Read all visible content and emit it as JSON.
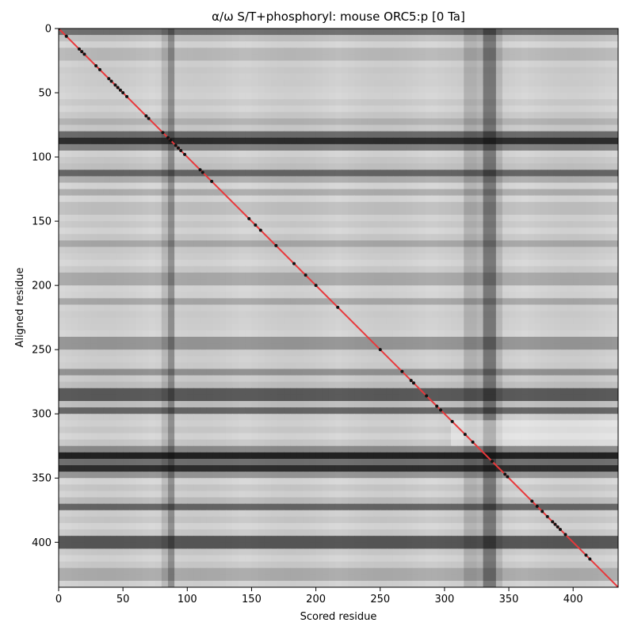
{
  "chart_data": {
    "type": "heatmap",
    "title": "α/ω S/T+phosphoryl: mouse ORC5:p [0 Ta]",
    "xlabel": "Scored residue",
    "ylabel": "Aligned residue",
    "xlim": [
      0,
      435
    ],
    "ylim": [
      435,
      0
    ],
    "x_ticks": [
      0,
      50,
      100,
      150,
      200,
      250,
      300,
      350,
      400
    ],
    "y_ticks": [
      0,
      50,
      100,
      150,
      200,
      250,
      300,
      350,
      400
    ],
    "colormap": "grayscale",
    "grid": false,
    "legend": "none",
    "colors": {
      "diagonal": "#e8383b",
      "points": "#111111"
    },
    "diagonal_line": {
      "from": [
        0,
        0
      ],
      "to": [
        435,
        435
      ]
    },
    "dark_rows": [
      {
        "center": 3,
        "width": 6,
        "strength": 0.55
      },
      {
        "center": 20,
        "width": 6,
        "strength": 0.3
      },
      {
        "center": 35,
        "width": 4,
        "strength": 0.25
      },
      {
        "center": 50,
        "width": 3,
        "strength": 0.2
      },
      {
        "center": 72,
        "width": 4,
        "strength": 0.25
      },
      {
        "center": 87,
        "width": 10,
        "strength": 0.85
      },
      {
        "center": 113,
        "width": 7,
        "strength": 0.6
      },
      {
        "center": 126,
        "width": 4,
        "strength": 0.35
      },
      {
        "center": 140,
        "width": 5,
        "strength": 0.3
      },
      {
        "center": 169,
        "width": 5,
        "strength": 0.35
      },
      {
        "center": 195,
        "width": 6,
        "strength": 0.4
      },
      {
        "center": 213,
        "width": 4,
        "strength": 0.3
      },
      {
        "center": 245,
        "width": 8,
        "strength": 0.45
      },
      {
        "center": 268,
        "width": 6,
        "strength": 0.4
      },
      {
        "center": 285,
        "width": 9,
        "strength": 0.75
      },
      {
        "center": 298,
        "width": 5,
        "strength": 0.6
      },
      {
        "center": 333,
        "width": 9,
        "strength": 0.9
      },
      {
        "center": 343,
        "width": 7,
        "strength": 0.85
      },
      {
        "center": 372,
        "width": 6,
        "strength": 0.6
      },
      {
        "center": 400,
        "width": 8,
        "strength": 0.8
      },
      {
        "center": 425,
        "width": 5,
        "strength": 0.45
      }
    ],
    "dark_columns": [
      {
        "center": 86,
        "width": 5,
        "strength": 0.45
      },
      {
        "center": 320,
        "width": 6,
        "strength": 0.3
      },
      {
        "center": 335,
        "width": 10,
        "strength": 0.55
      }
    ],
    "points": [
      [
        0,
        0
      ],
      [
        6,
        6
      ],
      [
        16,
        16
      ],
      [
        18,
        18
      ],
      [
        20,
        20
      ],
      [
        29,
        29
      ],
      [
        32,
        32
      ],
      [
        39,
        39
      ],
      [
        41,
        41
      ],
      [
        44,
        44
      ],
      [
        46,
        46
      ],
      [
        48,
        48
      ],
      [
        50,
        50
      ],
      [
        53,
        53
      ],
      [
        68,
        68
      ],
      [
        70,
        70
      ],
      [
        81,
        81
      ],
      [
        85,
        85
      ],
      [
        87,
        87
      ],
      [
        91,
        91
      ],
      [
        93,
        93
      ],
      [
        95,
        95
      ],
      [
        98,
        98
      ],
      [
        110,
        110
      ],
      [
        112,
        112
      ],
      [
        119,
        119
      ],
      [
        148,
        148
      ],
      [
        153,
        153
      ],
      [
        157,
        157
      ],
      [
        169,
        169
      ],
      [
        183,
        183
      ],
      [
        192,
        192
      ],
      [
        200,
        200
      ],
      [
        217,
        217
      ],
      [
        250,
        250
      ],
      [
        267,
        267
      ],
      [
        274,
        274
      ],
      [
        276,
        276
      ],
      [
        286,
        286
      ],
      [
        294,
        294
      ],
      [
        297,
        297
      ],
      [
        306,
        306
      ],
      [
        316,
        316
      ],
      [
        322,
        322
      ],
      [
        337,
        337
      ],
      [
        347,
        347
      ],
      [
        349,
        349
      ],
      [
        368,
        368
      ],
      [
        372,
        372
      ],
      [
        376,
        376
      ],
      [
        380,
        380
      ],
      [
        384,
        384
      ],
      [
        386,
        386
      ],
      [
        388,
        388
      ],
      [
        390,
        390
      ],
      [
        394,
        394
      ],
      [
        410,
        410
      ],
      [
        413,
        413
      ]
    ]
  }
}
